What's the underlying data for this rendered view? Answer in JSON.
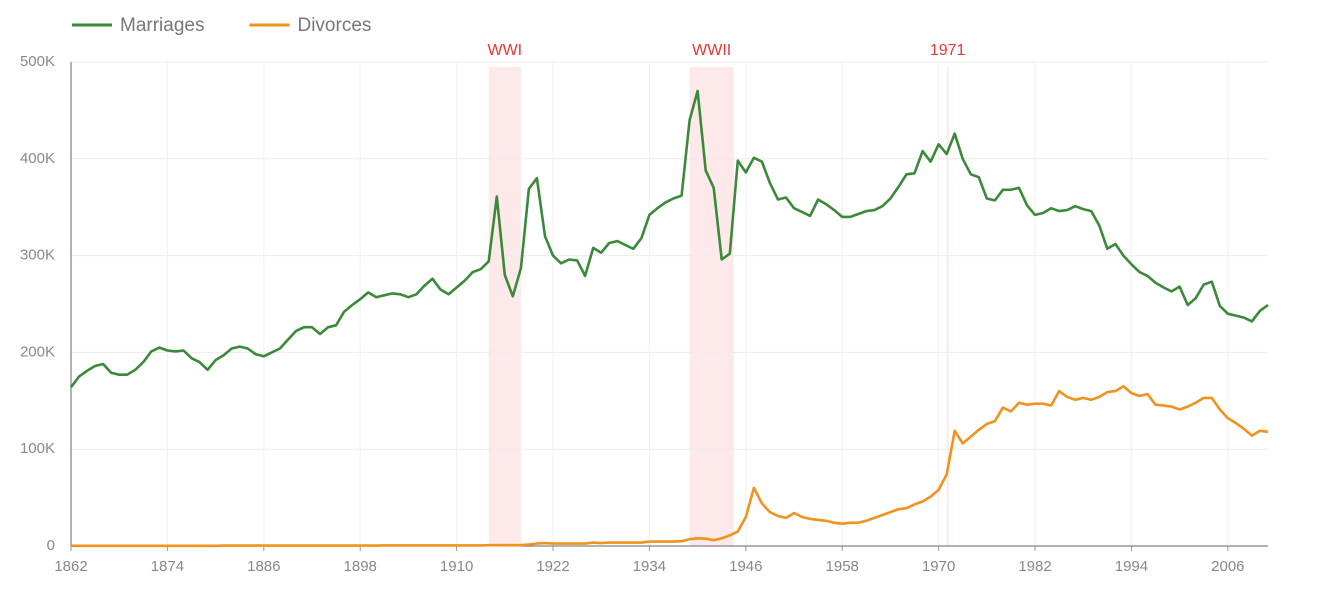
{
  "chart_data": {
    "type": "line",
    "x": [
      1862,
      1863,
      1864,
      1865,
      1866,
      1867,
      1868,
      1869,
      1870,
      1871,
      1872,
      1873,
      1874,
      1875,
      1876,
      1877,
      1878,
      1879,
      1880,
      1881,
      1882,
      1883,
      1884,
      1885,
      1886,
      1887,
      1888,
      1889,
      1890,
      1891,
      1892,
      1893,
      1894,
      1895,
      1896,
      1897,
      1898,
      1899,
      1900,
      1901,
      1902,
      1903,
      1904,
      1905,
      1906,
      1907,
      1908,
      1909,
      1910,
      1911,
      1912,
      1913,
      1914,
      1915,
      1916,
      1917,
      1918,
      1919,
      1920,
      1921,
      1922,
      1923,
      1924,
      1925,
      1926,
      1927,
      1928,
      1929,
      1930,
      1931,
      1932,
      1933,
      1934,
      1935,
      1936,
      1937,
      1938,
      1939,
      1940,
      1941,
      1942,
      1943,
      1944,
      1945,
      1946,
      1947,
      1948,
      1949,
      1950,
      1951,
      1952,
      1953,
      1954,
      1955,
      1956,
      1957,
      1958,
      1959,
      1960,
      1961,
      1962,
      1963,
      1964,
      1965,
      1966,
      1967,
      1968,
      1969,
      1970,
      1971,
      1972,
      1973,
      1974,
      1975,
      1976,
      1977,
      1978,
      1979,
      1980,
      1981,
      1982,
      1983,
      1984,
      1985,
      1986,
      1987,
      1988,
      1989,
      1990,
      1991,
      1992,
      1993,
      1994,
      1995,
      1996,
      1997,
      1998,
      1999,
      2000,
      2001,
      2002,
      2003,
      2004,
      2005,
      2006,
      2007,
      2008,
      2009,
      2010,
      2011
    ],
    "series": [
      {
        "name": "Marriages",
        "color": "#3a8a3a",
        "values": [
          164000,
          175000,
          181000,
          186000,
          188000,
          179000,
          177000,
          177000,
          182000,
          190000,
          201000,
          205000,
          202000,
          201000,
          202000,
          194000,
          190000,
          182000,
          192000,
          197000,
          204000,
          206000,
          204000,
          198000,
          196000,
          200000,
          204000,
          213000,
          222000,
          226000,
          226000,
          219000,
          226000,
          228000,
          242000,
          249000,
          255000,
          262000,
          257000,
          259000,
          261000,
          260000,
          257000,
          260000,
          269000,
          276000,
          265000,
          260000,
          267000,
          274000,
          283000,
          286000,
          294000,
          361000,
          280000,
          258000,
          287000,
          369000,
          380000,
          320000,
          300000,
          292000,
          296000,
          295000,
          279000,
          308000,
          303000,
          313000,
          315000,
          311000,
          307000,
          318000,
          342000,
          349000,
          355000,
          359000,
          362000,
          440000,
          470000,
          388000,
          370000,
          296000,
          302000,
          398000,
          386000,
          401000,
          397000,
          375000,
          358000,
          360000,
          349000,
          345000,
          341000,
          358000,
          353000,
          347000,
          340000,
          340000,
          343000,
          346000,
          347000,
          351000,
          359000,
          371000,
          384000,
          385000,
          408000,
          397000,
          415000,
          405000,
          426000,
          400000,
          384000,
          381000,
          359000,
          357000,
          368000,
          368000,
          370000,
          352000,
          342000,
          344000,
          349000,
          346000,
          347000,
          351000,
          348000,
          346000,
          331000,
          307000,
          312000,
          300000,
          291000,
          283000,
          279000,
          272000,
          267000,
          263000,
          268000,
          249000,
          256000,
          270000,
          273000,
          248000,
          240000,
          238000,
          236000,
          232000,
          243000,
          249000
        ]
      },
      {
        "name": "Divorces",
        "color": "#f0931e",
        "values": [
          200,
          200,
          200,
          200,
          200,
          200,
          200,
          200,
          200,
          200,
          200,
          200,
          200,
          200,
          200,
          200,
          200,
          200,
          200,
          400,
          400,
          400,
          400,
          400,
          400,
          400,
          400,
          400,
          400,
          400,
          400,
          400,
          400,
          400,
          400,
          400,
          400,
          400,
          400,
          600,
          600,
          600,
          600,
          600,
          600,
          600,
          600,
          600,
          600,
          600,
          600,
          600,
          800,
          800,
          800,
          800,
          1000,
          1500,
          2500,
          3000,
          2500,
          2500,
          2500,
          2500,
          2500,
          3500,
          3000,
          3500,
          3500,
          3500,
          3500,
          3500,
          4500,
          4500,
          4500,
          4500,
          5000,
          7000,
          8000,
          7500,
          6000,
          8000,
          11000,
          15000,
          30000,
          60000,
          44000,
          35000,
          31000,
          29000,
          34000,
          30000,
          28000,
          27000,
          26000,
          24000,
          23000,
          24000,
          24000,
          26000,
          29000,
          32000,
          35000,
          38000,
          39000,
          43000,
          46000,
          51000,
          58000,
          74000,
          119000,
          106000,
          113000,
          120000,
          126000,
          129000,
          143000,
          139000,
          148000,
          146000,
          147000,
          147000,
          145000,
          160000,
          154000,
          151000,
          153000,
          151000,
          154000,
          159000,
          160000,
          165000,
          158000,
          155000,
          157000,
          146000,
          145000,
          144000,
          141000,
          144000,
          148000,
          153000,
          153000,
          141000,
          132000,
          127000,
          121000,
          114000,
          119000,
          118000
        ]
      }
    ],
    "annotations": [
      {
        "label": "WWI",
        "start": 1914,
        "end": 1918
      },
      {
        "label": "WWII",
        "start": 1939,
        "end": 1944.5
      },
      {
        "label": "1971",
        "start": 1971,
        "end": 1971
      }
    ],
    "xlim": [
      1862,
      2011
    ],
    "xticks": [
      1862,
      1874,
      1886,
      1898,
      1910,
      1922,
      1934,
      1946,
      1958,
      1970,
      1982,
      1994,
      2006
    ],
    "ylim": [
      0,
      500000
    ],
    "yticks": [
      0,
      {
        "value": 100000,
        "label": "100K"
      },
      {
        "value": 200000,
        "label": "200K"
      },
      {
        "value": 300000,
        "label": "300K"
      },
      {
        "value": 400000,
        "label": "400K"
      },
      {
        "value": 500000,
        "label": "500K"
      }
    ],
    "grid": true,
    "legend": "top-left"
  }
}
